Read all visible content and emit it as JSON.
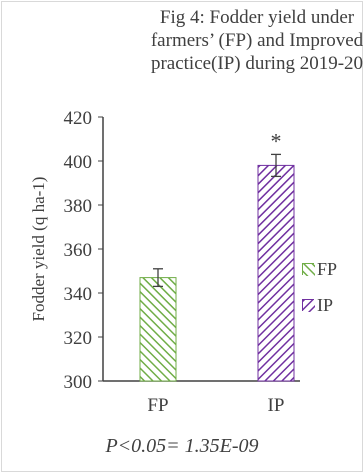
{
  "title_lines": [
    "Fig 4: Fodder yield under",
    "farmers’ (FP) and Improved",
    "practice(IP) during 2019-20"
  ],
  "stat_note": "P<0.05= 1.35E-09",
  "colors": {
    "fp": "#70ad47",
    "ip": "#7030a0",
    "axis": "#404040"
  },
  "chart_data": {
    "type": "bar",
    "title": "Fig 4: Fodder yield under farmers’ (FP) and Improved practice(IP) during 2019-20",
    "categories": [
      "FP",
      "IP"
    ],
    "values": [
      347,
      398
    ],
    "error": [
      4,
      5
    ],
    "ylabel": "Fodder yield (q ha-1)",
    "xlabel": "",
    "ylim": [
      300,
      420
    ],
    "yticks": [
      300,
      320,
      340,
      360,
      380,
      400,
      420
    ],
    "annotations": [
      {
        "category": "IP",
        "text": "*"
      }
    ],
    "legend": {
      "entries": [
        "FP",
        "IP"
      ],
      "position": "right"
    },
    "grid": false
  }
}
